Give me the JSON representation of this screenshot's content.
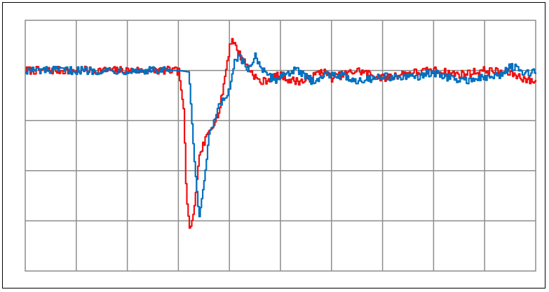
{
  "chart_data": {
    "type": "line",
    "title": "",
    "xlabel": "",
    "ylabel": "",
    "xlim": [
      0,
      10
    ],
    "ylim": [
      0,
      5
    ],
    "grid": true,
    "x_divisions": 10,
    "y_divisions": 5,
    "series": [
      {
        "color": "#ee1111",
        "x": [
          0,
          2.8,
          3.0,
          3.1,
          3.15,
          3.22,
          3.3,
          3.4,
          3.6,
          3.8,
          4.0,
          4.05,
          4.1,
          4.2,
          4.4,
          4.6,
          4.8,
          5.0,
          5.2,
          5.5,
          5.8,
          6.0,
          6.5,
          7.0,
          7.5,
          8.0,
          8.5,
          9.0,
          9.5,
          9.9,
          10
        ],
        "values": [
          4.0,
          4.0,
          3.98,
          3.2,
          1.5,
          0.8,
          1.2,
          2.3,
          2.8,
          3.2,
          4.5,
          4.65,
          4.5,
          4.3,
          4.0,
          3.75,
          3.85,
          3.9,
          3.8,
          3.78,
          4.0,
          3.85,
          4.0,
          3.85,
          3.95,
          4.0,
          3.92,
          4.0,
          3.95,
          3.78,
          3.8
        ]
      },
      {
        "color": "#0070c0",
        "x": [
          0,
          3.0,
          3.2,
          3.3,
          3.4,
          3.5,
          3.6,
          3.8,
          4.0,
          4.1,
          4.2,
          4.35,
          4.5,
          4.7,
          4.9,
          5.1,
          5.3,
          5.6,
          6.0,
          6.5,
          7.0,
          7.5,
          8.0,
          8.5,
          9.0,
          9.3,
          9.5,
          9.8,
          10
        ],
        "values": [
          4.0,
          4.0,
          3.97,
          2.3,
          1.05,
          1.8,
          2.7,
          3.3,
          3.6,
          4.2,
          4.25,
          4.0,
          4.3,
          3.9,
          3.82,
          3.95,
          4.0,
          3.8,
          3.95,
          3.8,
          3.88,
          3.85,
          3.95,
          3.8,
          3.85,
          3.9,
          4.1,
          3.92,
          4.0
        ]
      }
    ]
  }
}
